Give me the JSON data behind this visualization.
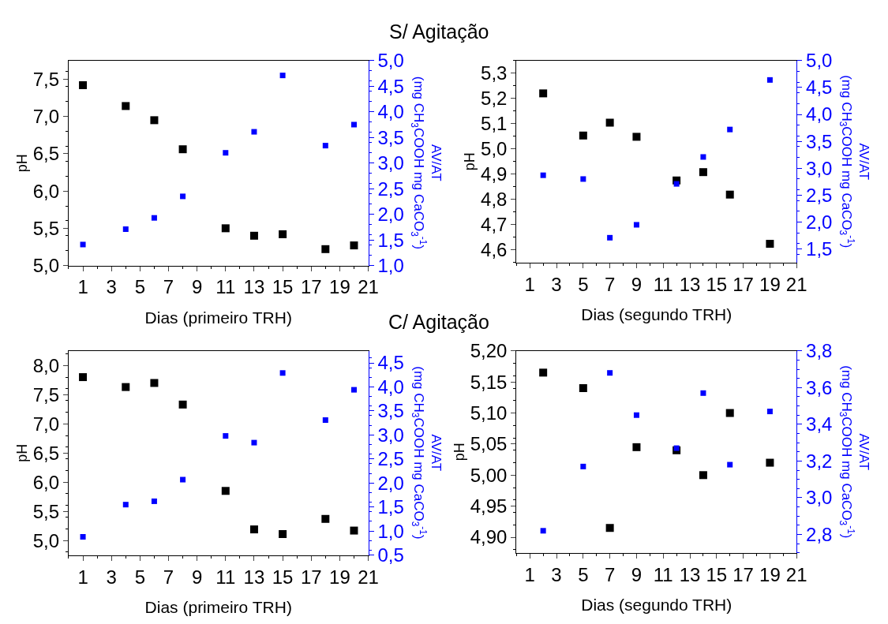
{
  "chart_data": [
    {
      "type": "scatter",
      "title": "S/ Agitação",
      "xlabel": "Dias (primeiro TRH)",
      "ylabel": "pH",
      "y2label": "AV/AT\n(mg CH$_{3}$COOH mg CaCO$_{3}$$^{-1}$)",
      "marker": "square",
      "x": [
        1,
        4,
        6,
        8,
        11,
        13,
        15,
        18,
        20
      ],
      "xlim": [
        0,
        21
      ],
      "xticks": [
        1,
        3,
        5,
        7,
        9,
        11,
        13,
        15,
        17,
        19,
        21
      ],
      "ylim": [
        5.0,
        7.75
      ],
      "yticks": [
        {
          "value": 5.0,
          "label": "5,0"
        },
        {
          "value": 5.5,
          "label": "5,5"
        },
        {
          "value": 6.0,
          "label": "6,0"
        },
        {
          "value": 6.5,
          "label": "6,5"
        },
        {
          "value": 7.0,
          "label": "7,0"
        },
        {
          "value": 7.5,
          "label": "7,5"
        }
      ],
      "y2lim": [
        1.0,
        5.0
      ],
      "y2ticks": [
        {
          "value": 1.0,
          "label": "1,0"
        },
        {
          "value": 1.5,
          "label": "1,5"
        },
        {
          "value": 2.0,
          "label": "2,0"
        },
        {
          "value": 2.5,
          "label": "2,5"
        },
        {
          "value": 3.0,
          "label": "3,0"
        },
        {
          "value": 3.5,
          "label": "3,5"
        },
        {
          "value": 4.0,
          "label": "4,0"
        },
        {
          "value": 4.5,
          "label": "4,5"
        },
        {
          "value": 5.0,
          "label": "5,0"
        }
      ],
      "series": [
        {
          "color": "#000000",
          "values": [
            7.42,
            7.14,
            6.95,
            6.56,
            5.5,
            5.4,
            5.42,
            5.22,
            5.27
          ]
        },
        {
          "color": "#0000ff",
          "axis": "y2",
          "values": [
            1.41,
            1.71,
            1.93,
            2.35,
            3.2,
            3.61,
            4.71,
            3.34,
            3.75
          ]
        }
      ]
    },
    {
      "type": "scatter",
      "xlabel": "Dias (segundo TRH)",
      "ylabel": "pH",
      "y2label": "AV/AT\n(mg CH$_{3}$COOH mg CaCO$_{3}$$^{-1}$)",
      "marker": "square",
      "x": [
        2,
        5,
        7,
        9,
        12,
        14,
        16,
        19
      ],
      "xlim": [
        0,
        21
      ],
      "xticks": [
        1,
        3,
        5,
        7,
        9,
        11,
        13,
        15,
        17,
        19,
        21
      ],
      "ylim": [
        4.55,
        5.35
      ],
      "yticks": [
        {
          "value": 4.6,
          "label": "4,6"
        },
        {
          "value": 4.7,
          "label": "4,7"
        },
        {
          "value": 4.8,
          "label": "4,8"
        },
        {
          "value": 4.9,
          "label": "4,9"
        },
        {
          "value": 5.0,
          "label": "5,0"
        },
        {
          "value": 5.1,
          "label": "5,1"
        },
        {
          "value": 5.2,
          "label": "5,2"
        },
        {
          "value": 5.3,
          "label": "5,3"
        }
      ],
      "y2lim": [
        1.25,
        5.0
      ],
      "y2ticks": [
        {
          "value": 1.5,
          "label": "1,5"
        },
        {
          "value": 2.0,
          "label": "2,0"
        },
        {
          "value": 2.5,
          "label": "2,5"
        },
        {
          "value": 3.0,
          "label": "3,0"
        },
        {
          "value": 3.5,
          "label": "3,5"
        },
        {
          "value": 4.0,
          "label": "4,0"
        },
        {
          "value": 4.5,
          "label": "4,5"
        },
        {
          "value": 5.0,
          "label": "5,0"
        }
      ],
      "series": [
        {
          "color": "#000000",
          "values": [
            5.22,
            5.053,
            5.104,
            5.048,
            4.875,
            4.908,
            4.819,
            4.624
          ]
        },
        {
          "color": "#0000ff",
          "axis": "y2",
          "values": [
            2.87,
            2.8,
            1.71,
            1.95,
            2.71,
            3.21,
            3.72,
            4.64
          ]
        }
      ]
    },
    {
      "type": "scatter",
      "title": "C/ Agitação",
      "xlabel": "Dias (primeiro TRH)",
      "ylabel": "pH",
      "y2label": "AV/AT\n(mg CH$_{3}$COOH mg CaCO$_{3}$$^{-1}$)",
      "marker": "square",
      "x": [
        1,
        4,
        6,
        8,
        11,
        13,
        15,
        18,
        20
      ],
      "xlim": [
        0,
        21
      ],
      "xticks": [
        1,
        3,
        5,
        7,
        9,
        11,
        13,
        15,
        17,
        19,
        21
      ],
      "ylim": [
        4.75,
        8.25
      ],
      "yticks": [
        {
          "value": 5.0,
          "label": "5,0"
        },
        {
          "value": 5.5,
          "label": "5,5"
        },
        {
          "value": 6.0,
          "label": "6,0"
        },
        {
          "value": 6.5,
          "label": "6,5"
        },
        {
          "value": 7.0,
          "label": "7,0"
        },
        {
          "value": 7.5,
          "label": "7,5"
        },
        {
          "value": 8.0,
          "label": "8,0"
        }
      ],
      "y2lim": [
        0.5,
        4.75
      ],
      "y2ticks": [
        {
          "value": 0.5,
          "label": "0,5"
        },
        {
          "value": 1.0,
          "label": "1,0"
        },
        {
          "value": 1.5,
          "label": "1,5"
        },
        {
          "value": 2.0,
          "label": "2,0"
        },
        {
          "value": 2.5,
          "label": "2,5"
        },
        {
          "value": 3.0,
          "label": "3,0"
        },
        {
          "value": 3.5,
          "label": "3,5"
        },
        {
          "value": 4.0,
          "label": "4,0"
        },
        {
          "value": 4.5,
          "label": "4,5"
        }
      ],
      "series": [
        {
          "color": "#000000",
          "values": [
            7.8,
            7.63,
            7.7,
            7.33,
            5.85,
            5.19,
            5.11,
            5.37,
            5.17
          ]
        },
        {
          "color": "#0000ff",
          "axis": "y2",
          "values": [
            0.88,
            1.55,
            1.62,
            2.07,
            2.98,
            2.84,
            4.29,
            3.31,
            3.94
          ]
        }
      ]
    },
    {
      "type": "scatter",
      "xlabel": "Dias (segundo TRH)",
      "ylabel": "pH",
      "y2label": "AV/AT\n(mg CH$_{3}$COOH mg CaCO$_{3}$$^{-1}$)",
      "marker": "square",
      "x": [
        2,
        5,
        7,
        9,
        12,
        14,
        16,
        19
      ],
      "xlim": [
        0,
        21
      ],
      "xticks": [
        1,
        3,
        5,
        7,
        9,
        11,
        13,
        15,
        17,
        19,
        21
      ],
      "ylim": [
        4.875,
        5.2
      ],
      "yticks": [
        {
          "value": 4.9,
          "label": "4,90"
        },
        {
          "value": 4.95,
          "label": "4,95"
        },
        {
          "value": 5.0,
          "label": "5,00"
        },
        {
          "value": 5.05,
          "label": "5,05"
        },
        {
          "value": 5.1,
          "label": "5,10"
        },
        {
          "value": 5.15,
          "label": "5,15"
        },
        {
          "value": 5.2,
          "label": "5,20"
        }
      ],
      "y2lim": [
        2.7,
        3.8
      ],
      "y2ticks": [
        {
          "value": 2.8,
          "label": "2,8"
        },
        {
          "value": 3.0,
          "label": "3,0"
        },
        {
          "value": 3.2,
          "label": "3,2"
        },
        {
          "value": 3.4,
          "label": "3,4"
        },
        {
          "value": 3.6,
          "label": "3,6"
        },
        {
          "value": 3.8,
          "label": "3,8"
        }
      ],
      "series": [
        {
          "color": "#000000",
          "values": [
            5.165,
            5.14,
            4.915,
            5.045,
            5.04,
            5.0,
            5.1,
            5.02
          ]
        },
        {
          "color": "#0000ff",
          "axis": "y2",
          "values": [
            2.82,
            3.17,
            3.68,
            3.45,
            3.27,
            3.57,
            3.18,
            3.47
          ]
        }
      ]
    }
  ]
}
